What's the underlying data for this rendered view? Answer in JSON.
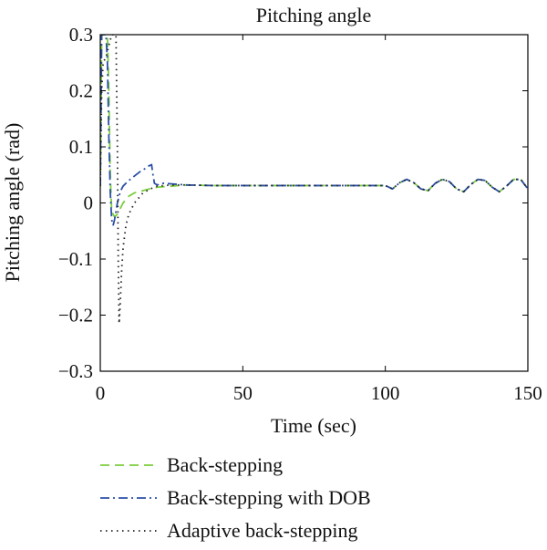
{
  "chart_data": {
    "type": "line",
    "title": "Pitching angle",
    "xlabel": "Time (sec)",
    "ylabel": "Pitching angle (rad)",
    "xlim": [
      0,
      150
    ],
    "ylim": [
      -0.3,
      0.3
    ],
    "xticks": [
      0,
      50,
      100,
      150
    ],
    "xtick_labels": [
      "0",
      "50",
      "100",
      "150"
    ],
    "yticks": [
      -0.3,
      -0.2,
      -0.1,
      0,
      0.1,
      0.2,
      0.3
    ],
    "ytick_labels": [
      "−0.3",
      "−0.2",
      "−0.1",
      "0",
      "0.1",
      "0.2",
      "0.3"
    ],
    "grid": false,
    "legend_position": "bottom-left, below plot",
    "series": [
      {
        "name": "Back-stepping",
        "color": "#7ccc3c",
        "dash": "dashed",
        "x": [
          0,
          0.5,
          1,
          1.5,
          2,
          2.5,
          3,
          3.5,
          4,
          5,
          6,
          7,
          8,
          10,
          12,
          15,
          18,
          20,
          25,
          30,
          40,
          50,
          60,
          70,
          80,
          90,
          100,
          102.5,
          105,
          107.5,
          110,
          112.5,
          115,
          117.5,
          120,
          122.5,
          125,
          127.5,
          130,
          132.5,
          135,
          137.5,
          140,
          142.5,
          145,
          147.5,
          150
        ],
        "y": [
          0.03,
          0.3,
          0.3,
          0.3,
          0.3,
          0.3,
          0.2,
          0.05,
          -0.015,
          -0.025,
          -0.02,
          -0.01,
          0.0,
          0.012,
          0.018,
          0.022,
          0.026,
          0.028,
          0.03,
          0.032,
          0.031,
          0.031,
          0.031,
          0.031,
          0.031,
          0.031,
          0.031,
          0.025,
          0.036,
          0.042,
          0.036,
          0.025,
          0.022,
          0.035,
          0.042,
          0.038,
          0.025,
          0.02,
          0.033,
          0.042,
          0.04,
          0.028,
          0.02,
          0.03,
          0.042,
          0.042,
          0.025
        ]
      },
      {
        "name": "Back-stepping with DOB",
        "color": "#2b4fa8",
        "dash": "dashdot",
        "x": [
          0,
          0.5,
          1,
          1.5,
          2,
          2.5,
          3,
          3.5,
          4,
          4.5,
          5,
          6,
          7,
          8,
          10,
          12,
          14,
          16,
          17,
          18,
          18.5,
          19,
          20,
          22,
          25,
          30,
          40,
          50,
          60,
          70,
          80,
          90,
          100,
          102.5,
          105,
          107.5,
          110,
          112.5,
          115,
          117.5,
          120,
          122.5,
          125,
          127.5,
          130,
          132.5,
          135,
          137.5,
          140,
          142.5,
          145,
          147.5,
          150
        ],
        "y": [
          0.03,
          0.3,
          0.3,
          0.3,
          0.3,
          0.25,
          0.12,
          0.02,
          -0.03,
          -0.04,
          -0.03,
          0.0,
          0.02,
          0.03,
          0.04,
          0.048,
          0.056,
          0.062,
          0.066,
          0.068,
          0.05,
          0.035,
          0.032,
          0.035,
          0.034,
          0.032,
          0.031,
          0.031,
          0.031,
          0.031,
          0.031,
          0.031,
          0.031,
          0.025,
          0.036,
          0.042,
          0.036,
          0.025,
          0.022,
          0.035,
          0.042,
          0.038,
          0.025,
          0.02,
          0.033,
          0.042,
          0.04,
          0.028,
          0.02,
          0.03,
          0.042,
          0.042,
          0.025
        ]
      },
      {
        "name": "Adaptive back-stepping",
        "color": "#222222",
        "dash": "dotted",
        "x": [
          0,
          0.5,
          1,
          2,
          3,
          4,
          5,
          5.5,
          6,
          6.3,
          6.6,
          7,
          7.5,
          8,
          9,
          10,
          12,
          15,
          18,
          20,
          25,
          30,
          40,
          50,
          60,
          70,
          80,
          90,
          100,
          102.5,
          105,
          107.5,
          110,
          112.5,
          115,
          117.5,
          120,
          122.5,
          125,
          127.5,
          130,
          132.5,
          135,
          137.5,
          140,
          142.5,
          145,
          147.5,
          150
        ],
        "y": [
          0.03,
          0.2,
          0.25,
          0.26,
          0.28,
          0.3,
          0.3,
          0.3,
          0.1,
          -0.1,
          -0.215,
          -0.18,
          -0.12,
          -0.08,
          -0.04,
          -0.02,
          0.0,
          0.018,
          0.026,
          0.03,
          0.032,
          0.032,
          0.031,
          0.031,
          0.031,
          0.031,
          0.031,
          0.031,
          0.031,
          0.025,
          0.036,
          0.042,
          0.036,
          0.025,
          0.022,
          0.035,
          0.042,
          0.038,
          0.025,
          0.02,
          0.033,
          0.042,
          0.04,
          0.028,
          0.02,
          0.03,
          0.042,
          0.042,
          0.025
        ]
      }
    ]
  }
}
